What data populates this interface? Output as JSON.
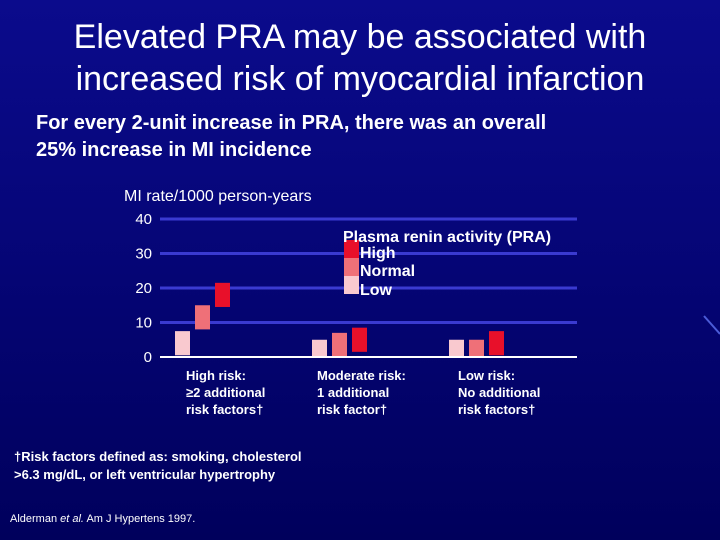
{
  "slide": {
    "title_line1": "Elevated PRA may be associated with",
    "title_line2": "increased risk of myocardial infarction",
    "subtitle_line1": "For every 2-unit increase in PRA, there was an overall",
    "subtitle_line2": "25% increase in MI incidence",
    "footnote_line1": "†Risk factors defined as: smoking, cholesterol",
    "footnote_line2": ">6.3 mg/dL, or left ventricular hypertrophy",
    "citation_author": "Alderman ",
    "citation_etal": "et al.",
    "citation_rest": " Am J Hypertens 1997."
  },
  "colors": {
    "background": "#06067a",
    "gridline": "#3a3ad0",
    "high": "#e8102a",
    "normal": "#ef7078",
    "low": "#f9c9cf"
  },
  "chart_data": {
    "type": "bar",
    "ylabel": "MI rate/1000 person-years",
    "ylim": [
      0,
      40
    ],
    "yticks": [
      0,
      10,
      20,
      30,
      40
    ],
    "legend_title": "Plasma renin activity (PRA)",
    "legend_placement": "top-right",
    "categories": [
      {
        "lines": [
          "High risk:",
          "≥2 additional",
          "risk factors†"
        ]
      },
      {
        "lines": [
          "Moderate risk:",
          "1 additional",
          "risk factor†"
        ]
      },
      {
        "lines": [
          "Low risk:",
          "No additional",
          "risk factors†"
        ]
      }
    ],
    "series": [
      {
        "name": "High",
        "color": "#e8102a",
        "values": [
          21.5,
          8.5,
          7.5
        ]
      },
      {
        "name": "Normal",
        "color": "#ef7078",
        "values": [
          15,
          7,
          5
        ]
      },
      {
        "name": "Low",
        "color": "#f9c9cf",
        "values": [
          7.5,
          5,
          5
        ]
      }
    ]
  }
}
